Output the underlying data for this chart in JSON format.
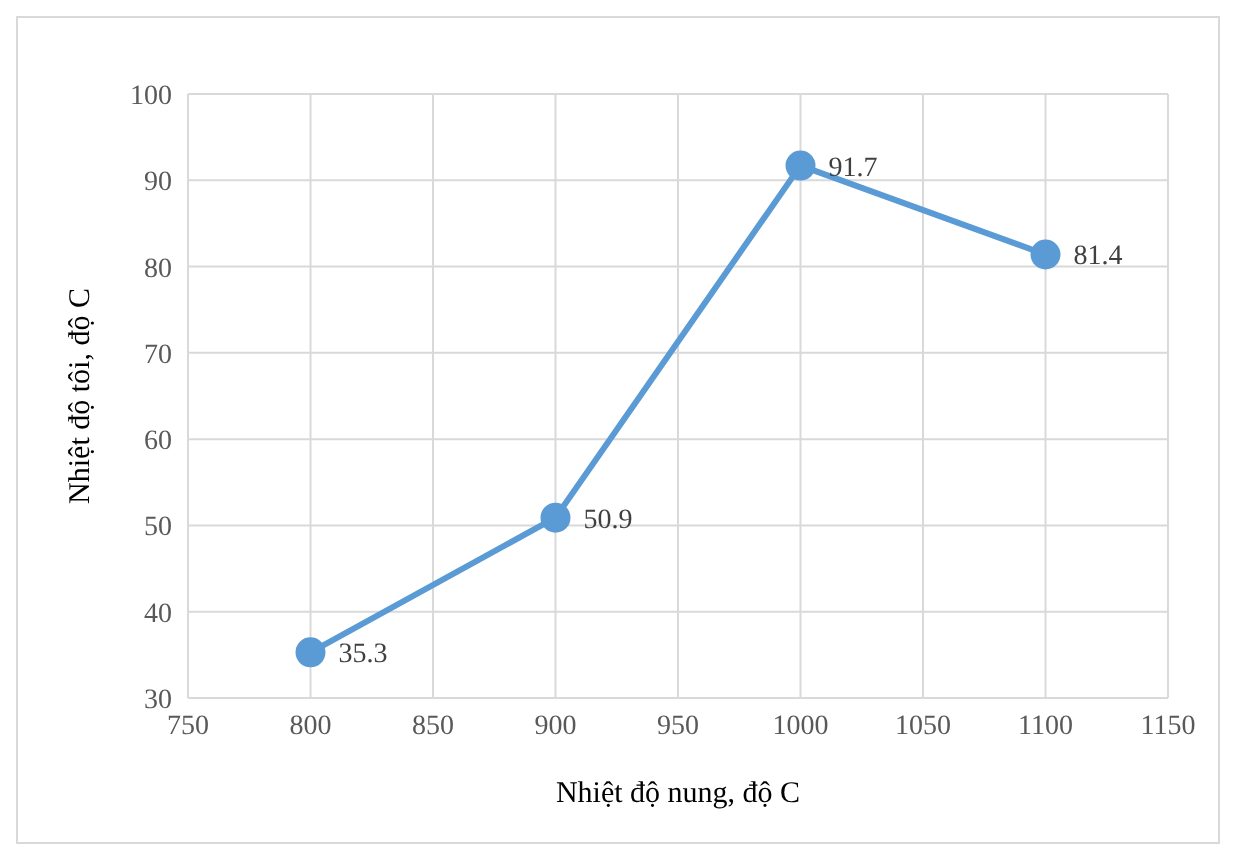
{
  "chart_data": {
    "type": "line",
    "xlabel": "Nhiệt độ nung, độ C",
    "ylabel": "Nhiệt độ tôi, độ C",
    "x": [
      800,
      900,
      1000,
      1100
    ],
    "series": [
      {
        "color": "#5b9bd5",
        "values": [
          35.3,
          50.9,
          91.7,
          81.4
        ]
      }
    ],
    "xlim": [
      750,
      1150
    ],
    "xticks": [
      750,
      800,
      850,
      900,
      950,
      1000,
      1050,
      1100,
      1150
    ],
    "ylim": [
      30,
      100
    ],
    "yticks": [
      30,
      40,
      50,
      60,
      70,
      80,
      90,
      100
    ],
    "grid": true,
    "legend": false,
    "marker": "circle",
    "line_style": "solid",
    "data_labels": true
  }
}
